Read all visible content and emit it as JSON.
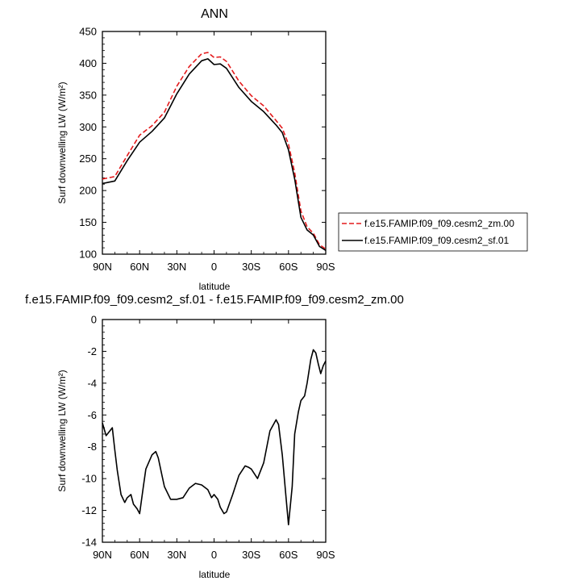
{
  "chart_data": [
    {
      "type": "line",
      "title": "ANN",
      "xlabel": "latitude",
      "ylabel": "Surf downwelling LW (W/m²)",
      "xticks": [
        "90N",
        "60N",
        "30N",
        "0",
        "30S",
        "60S",
        "90S"
      ],
      "xlim": [
        90,
        -90
      ],
      "ylim": [
        100,
        450
      ],
      "yticks": [
        "100",
        "150",
        "200",
        "250",
        "300",
        "350",
        "400",
        "450"
      ],
      "legend_position": "right",
      "x": [
        90,
        80,
        70,
        60,
        50,
        40,
        30,
        20,
        10,
        5,
        0,
        -5,
        -10,
        -20,
        -30,
        -40,
        -50,
        -55,
        -60,
        -65,
        -70,
        -75,
        -80,
        -85,
        -90
      ],
      "series": [
        {
          "name": "f.e15.FAMIP.f09_f09.cesm2_zm.00",
          "color": "#e41a1c",
          "dash": "dashed",
          "values": [
            218,
            222,
            255,
            287,
            302,
            323,
            364,
            395,
            415,
            417,
            409,
            410,
            403,
            372,
            349,
            333,
            310,
            298,
            273,
            228,
            168,
            143,
            133,
            115,
            108
          ]
        },
        {
          "name": "f.e15.FAMIP.f09_f09.cesm2_sf.01",
          "color": "#000000",
          "dash": "solid",
          "values": [
            211,
            215,
            247,
            276,
            293,
            314,
            352,
            383,
            404,
            407,
            398,
            399,
            392,
            362,
            340,
            324,
            303,
            291,
            264,
            218,
            158,
            138,
            130,
            112,
            106
          ]
        }
      ]
    },
    {
      "type": "line",
      "title": "f.e15.FAMIP.f09_f09.cesm2_sf.01 - f.e15.FAMIP.f09_f09.cesm2_zm.00",
      "xlabel": "latitude",
      "ylabel": "Surf downwelling LW (W/m²)",
      "xticks": [
        "90N",
        "60N",
        "30N",
        "0",
        "30S",
        "60S",
        "90S"
      ],
      "xlim": [
        90,
        -90
      ],
      "ylim": [
        -14,
        0
      ],
      "yticks": [
        "-14",
        "-12",
        "-10",
        "-8",
        "-6",
        "-4",
        "-2",
        "0"
      ],
      "x": [
        90,
        87,
        85,
        82,
        80,
        78,
        75,
        72,
        70,
        67,
        65,
        62,
        60,
        57,
        55,
        50,
        47,
        45,
        42,
        40,
        35,
        30,
        25,
        20,
        15,
        10,
        5,
        2,
        0,
        -3,
        -5,
        -8,
        -10,
        -15,
        -20,
        -25,
        -28,
        -30,
        -35,
        -40,
        -45,
        -50,
        -52,
        -55,
        -58,
        -60,
        -63,
        -65,
        -68,
        -70,
        -73,
        -75,
        -78,
        -80,
        -82,
        -84,
        -86,
        -88,
        -90
      ],
      "series": [
        {
          "name": "f.e15.FAMIP.f09_f09.cesm2_sf.01 - f.e15.FAMIP.f09_f09.cesm2_zm.00",
          "color": "#000000",
          "values": [
            -6.5,
            -7.3,
            -7.1,
            -6.8,
            -8.2,
            -9.5,
            -11.0,
            -11.5,
            -11.2,
            -11.0,
            -11.6,
            -11.9,
            -12.2,
            -10.5,
            -9.4,
            -8.5,
            -8.3,
            -8.7,
            -9.8,
            -10.5,
            -11.3,
            -11.3,
            -11.2,
            -10.6,
            -10.3,
            -10.4,
            -10.7,
            -11.2,
            -11.0,
            -11.3,
            -11.8,
            -12.2,
            -12.1,
            -11.0,
            -9.8,
            -9.2,
            -9.3,
            -9.4,
            -10.0,
            -9.0,
            -7.0,
            -6.3,
            -6.6,
            -8.5,
            -11.2,
            -12.9,
            -10.5,
            -7.2,
            -5.8,
            -5.1,
            -4.8,
            -4.0,
            -2.5,
            -1.9,
            -2.1,
            -2.8,
            -3.4,
            -2.9,
            -2.6
          ]
        }
      ]
    }
  ]
}
